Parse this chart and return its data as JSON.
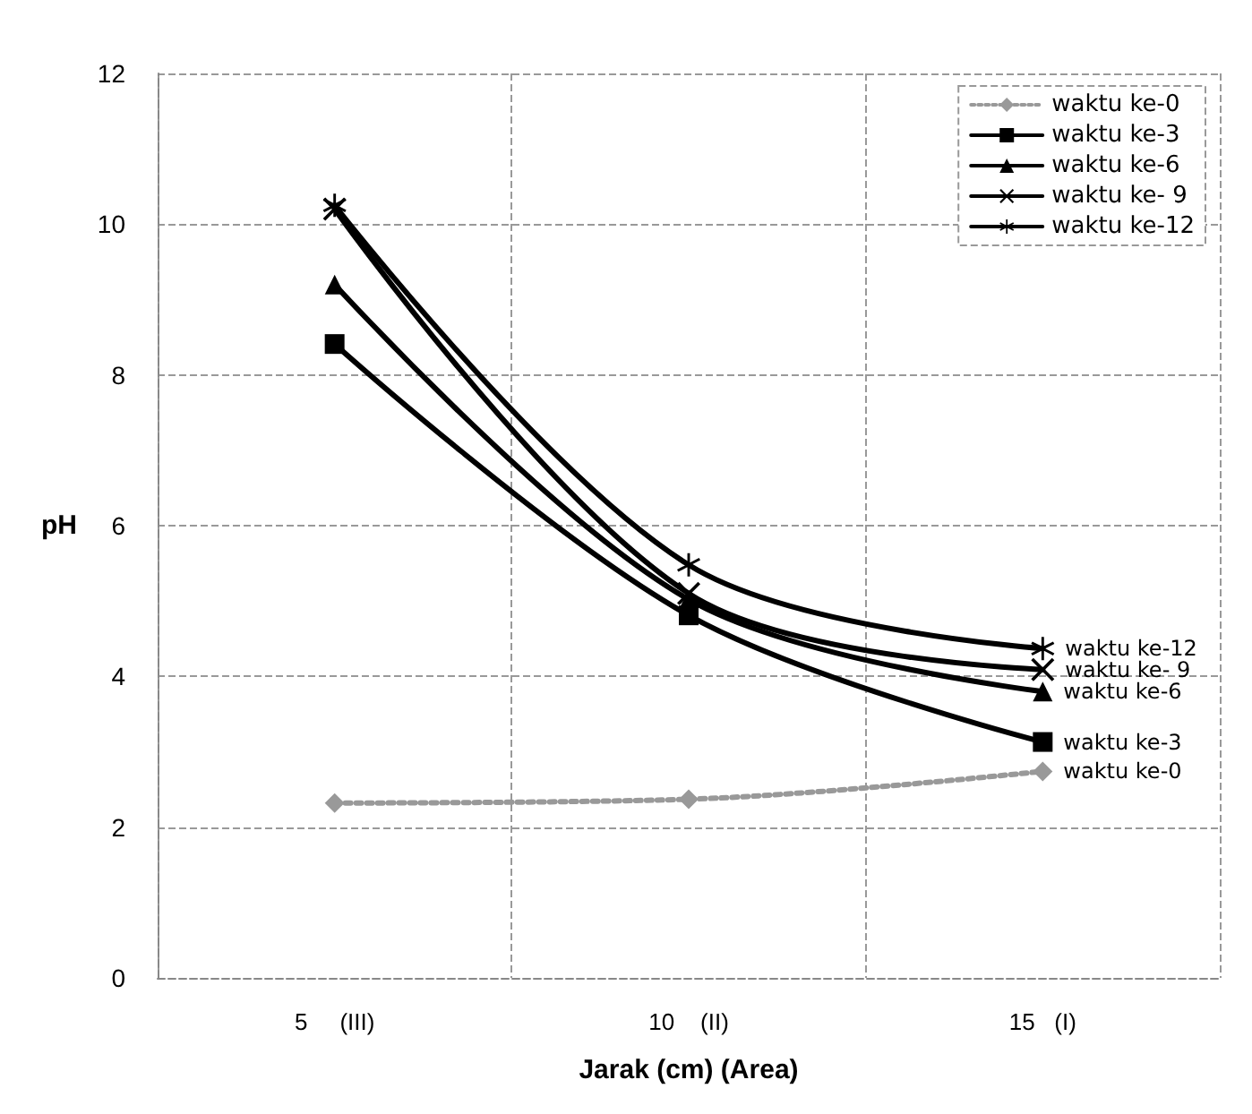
{
  "chart_data": {
    "type": "line",
    "xlabel": "Jarak (cm) (Area)",
    "ylabel": "pH",
    "categories": [
      "5     (III)",
      "10    (II)",
      "15   (I)"
    ],
    "ylim": [
      0,
      12
    ],
    "yticks": [
      0,
      2,
      4,
      6,
      8,
      10,
      12
    ],
    "grid": true,
    "legend": "top right",
    "line_style": "solid",
    "series": [
      {
        "name": "waktu ke-0",
        "color": "#999999",
        "marker": "diamond",
        "line_style": "dotted",
        "values": [
          2.32,
          2.37,
          2.74
        ]
      },
      {
        "name": "waktu ke-3",
        "color": "#000000",
        "marker": "square",
        "values": [
          8.41,
          4.81,
          3.13
        ]
      },
      {
        "name": "waktu ke-6",
        "color": "#000000",
        "marker": "triangle",
        "values": [
          9.2,
          5.02,
          3.8
        ]
      },
      {
        "name": "waktu ke- 9",
        "color": "#000000",
        "marker": "cross",
        "values": [
          10.2,
          5.1,
          4.09
        ]
      },
      {
        "name": "waktu ke-12",
        "color": "#000000",
        "marker": "star",
        "values": [
          10.25,
          5.48,
          4.37
        ]
      }
    ]
  }
}
